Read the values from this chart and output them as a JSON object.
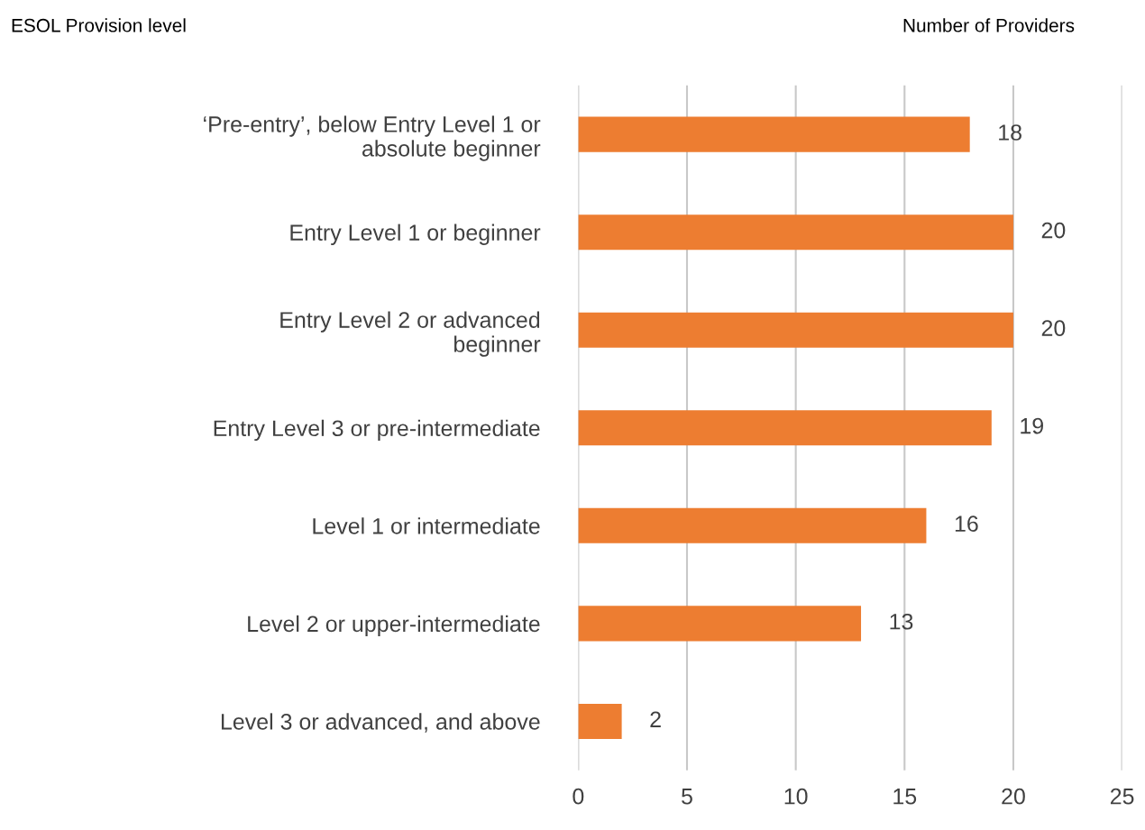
{
  "chart_data": {
    "type": "bar",
    "orientation": "horizontal",
    "xlabel": "Number of Providers",
    "ylabel": "ESOL Provision level",
    "categories": [
      "‘Pre-entry’, below Entry Level 1 or\nabsolute beginner",
      "Entry Level 1 or beginner",
      "Entry Level 2 or advanced\nbeginner",
      "Entry Level 3 or pre-intermediate",
      "Level 1 or intermediate",
      "Level 2 or upper-intermediate",
      "Level 3 or advanced, and above"
    ],
    "values": [
      18,
      20,
      20,
      19,
      16,
      13,
      2
    ],
    "color": "#ed7d31",
    "xlim": [
      0,
      25
    ],
    "xticks": [
      0,
      5,
      10,
      15,
      20,
      25
    ],
    "grid": "x",
    "data_labels": true
  }
}
